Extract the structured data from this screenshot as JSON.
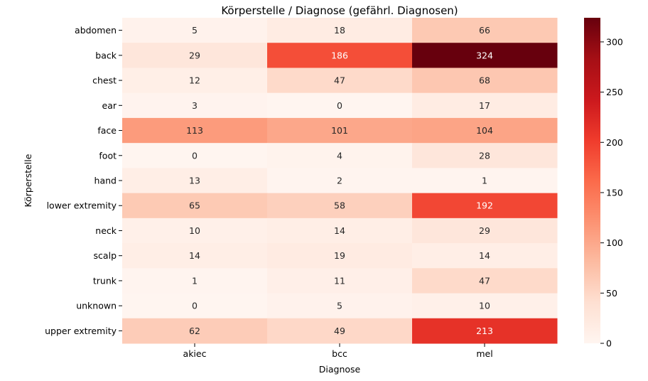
{
  "chart_data": {
    "type": "heatmap",
    "title": "Körperstelle / Diagnose (gefährl. Diagnosen)",
    "xlabel": "Diagnose",
    "ylabel": "Körperstelle",
    "x_categories": [
      "akiec",
      "bcc",
      "mel"
    ],
    "y_categories": [
      "abdomen",
      "back",
      "chest",
      "ear",
      "face",
      "foot",
      "hand",
      "lower extremity",
      "neck",
      "scalp",
      "trunk",
      "unknown",
      "upper extremity"
    ],
    "values": [
      [
        5,
        18,
        66
      ],
      [
        29,
        186,
        324
      ],
      [
        12,
        47,
        68
      ],
      [
        3,
        0,
        17
      ],
      [
        113,
        101,
        104
      ],
      [
        0,
        4,
        28
      ],
      [
        13,
        2,
        1
      ],
      [
        65,
        58,
        192
      ],
      [
        10,
        14,
        29
      ],
      [
        14,
        19,
        14
      ],
      [
        1,
        11,
        47
      ],
      [
        0,
        5,
        10
      ],
      [
        62,
        49,
        213
      ]
    ],
    "colormap": "Reds",
    "vmin": 0,
    "vmax": 324,
    "colorbar_ticks": [
      0,
      50,
      100,
      150,
      200,
      250,
      300
    ],
    "annotations": true
  }
}
